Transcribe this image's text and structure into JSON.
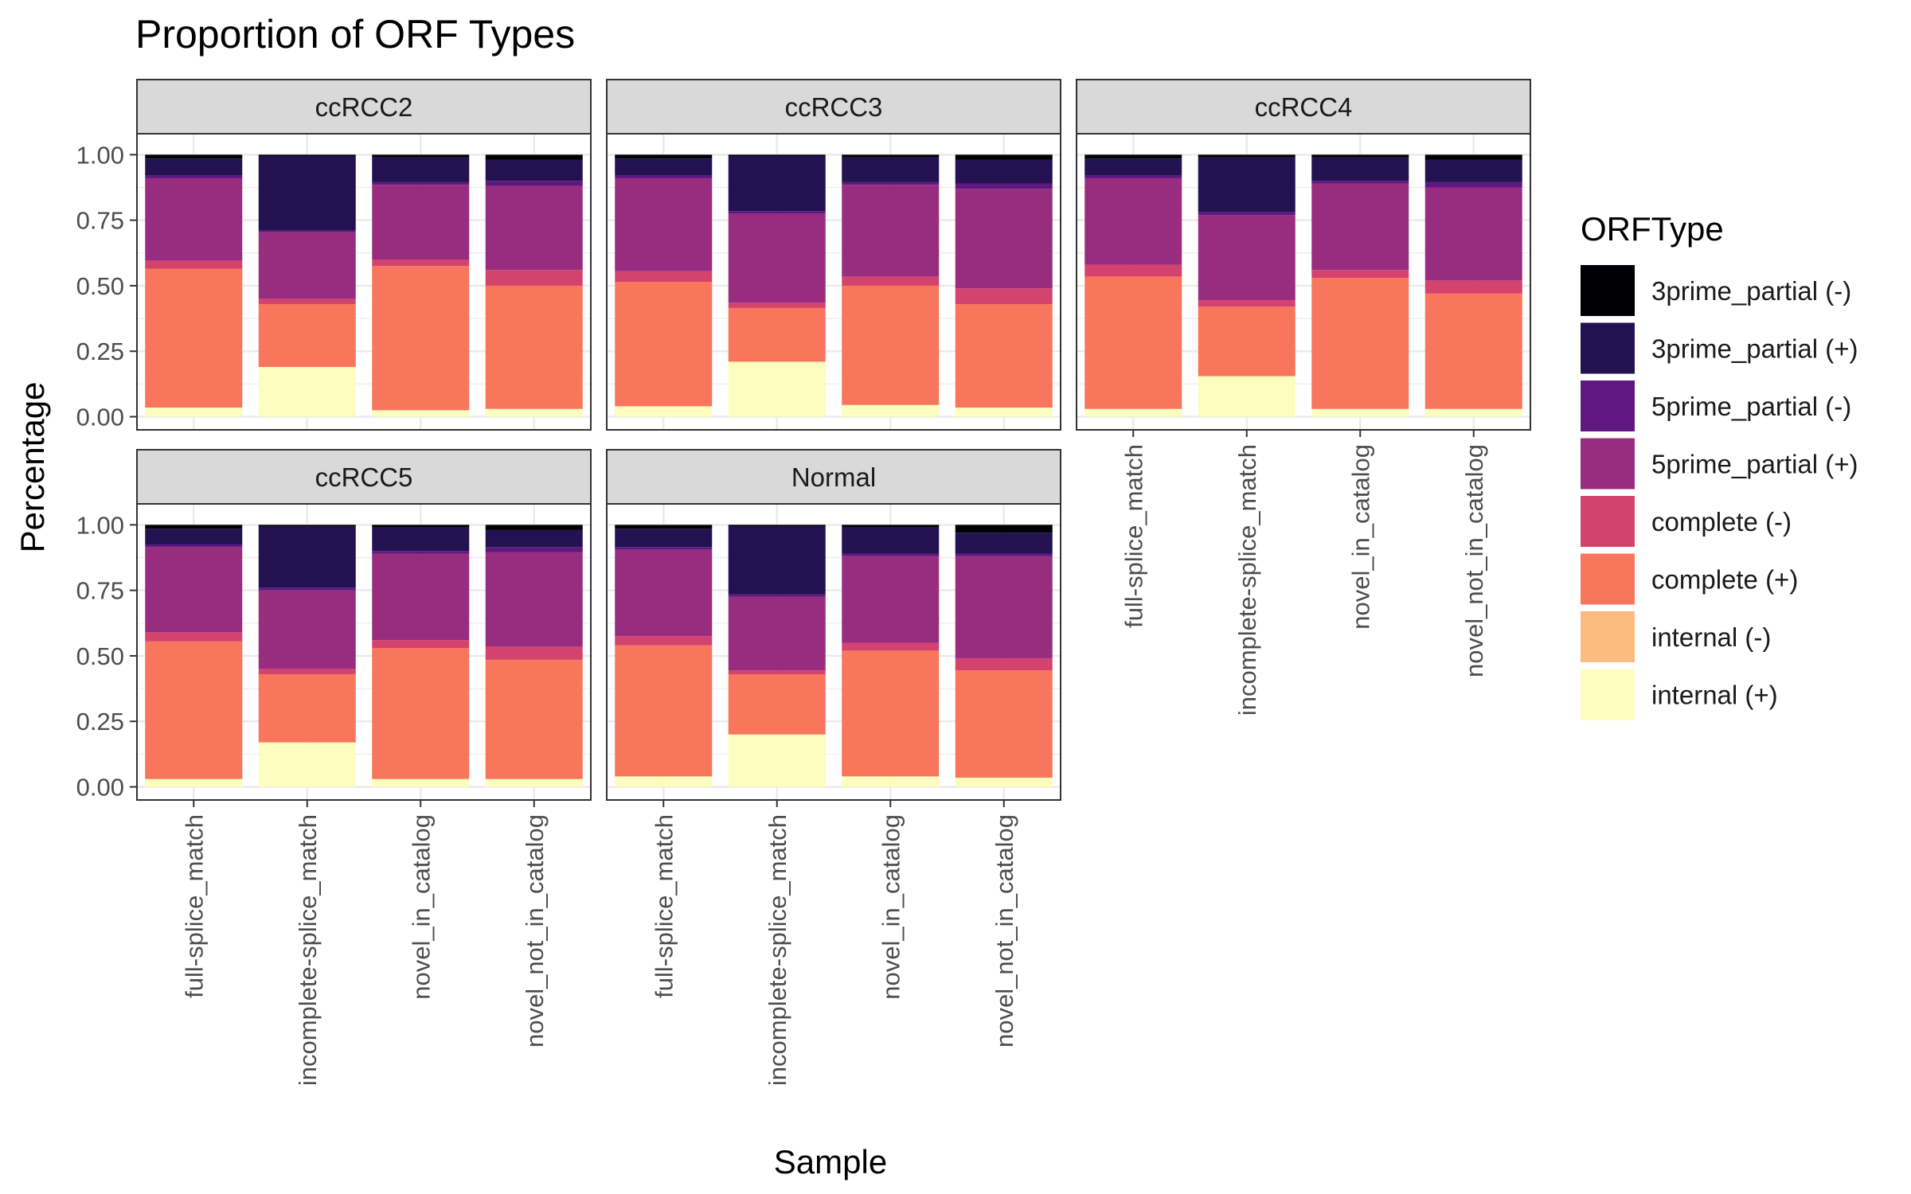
{
  "chart_data": {
    "type": "bar",
    "stacked": true,
    "title": "Proportion of ORF Types",
    "xlabel": "Sample",
    "ylabel": "Percentage",
    "ylim": [
      0,
      1.0
    ],
    "yticks": [
      "0.00",
      "0.25",
      "0.50",
      "0.75",
      "1.00"
    ],
    "categories": [
      "full-splice_match",
      "incomplete-splice_match",
      "novel_in_catalog",
      "novel_not_in_catalog"
    ],
    "legend": {
      "title": "ORFType",
      "placement": "right",
      "entries": [
        "3prime_partial (-)",
        "3prime_partial (+)",
        "5prime_partial (-)",
        "5prime_partial (+)",
        "complete (-)",
        "complete (+)",
        "internal (-)",
        "internal (+)"
      ]
    },
    "stack_order_bottom_to_top": [
      "internal (+)",
      "internal (-)",
      "complete (+)",
      "complete (-)",
      "5prime_partial (+)",
      "5prime_partial (-)",
      "3prime_partial (+)",
      "3prime_partial (-)"
    ],
    "colors": {
      "3prime_partial (-)": "#000004",
      "3prime_partial (+)": "#231151",
      "5prime_partial (-)": "#5f187f",
      "5prime_partial (+)": "#982d80",
      "complete (-)": "#d3436e",
      "complete (+)": "#f8765c",
      "internal (-)": "#febb81",
      "internal (+)": "#fcfdbf"
    },
    "panels": [
      {
        "name": "ccRCC2",
        "bars": [
          {
            "category": "full-splice_match",
            "values": {
              "internal (+)": 0.035,
              "internal (-)": 0.0,
              "complete (+)": 0.53,
              "complete (-)": 0.03,
              "5prime_partial (+)": 0.315,
              "5prime_partial (-)": 0.01,
              "3prime_partial (+)": 0.065,
              "3prime_partial (-)": 0.015
            }
          },
          {
            "category": "incomplete-splice_match",
            "values": {
              "internal (+)": 0.19,
              "internal (-)": 0.0,
              "complete (+)": 0.24,
              "complete (-)": 0.02,
              "5prime_partial (+)": 0.255,
              "5prime_partial (-)": 0.005,
              "3prime_partial (+)": 0.285,
              "3prime_partial (-)": 0.005
            }
          },
          {
            "category": "novel_in_catalog",
            "values": {
              "internal (+)": 0.025,
              "internal (-)": 0.0,
              "complete (+)": 0.55,
              "complete (-)": 0.025,
              "5prime_partial (+)": 0.285,
              "5prime_partial (-)": 0.01,
              "3prime_partial (+)": 0.095,
              "3prime_partial (-)": 0.01
            }
          },
          {
            "category": "novel_not_in_catalog",
            "values": {
              "internal (+)": 0.03,
              "internal (-)": 0.0,
              "complete (+)": 0.47,
              "complete (-)": 0.06,
              "5prime_partial (+)": 0.32,
              "5prime_partial (-)": 0.02,
              "3prime_partial (+)": 0.08,
              "3prime_partial (-)": 0.02
            }
          }
        ]
      },
      {
        "name": "ccRCC3",
        "bars": [
          {
            "category": "full-splice_match",
            "values": {
              "internal (+)": 0.04,
              "internal (-)": 0.0,
              "complete (+)": 0.475,
              "complete (-)": 0.04,
              "5prime_partial (+)": 0.355,
              "5prime_partial (-)": 0.01,
              "3prime_partial (+)": 0.065,
              "3prime_partial (-)": 0.015
            }
          },
          {
            "category": "incomplete-splice_match",
            "values": {
              "internal (+)": 0.21,
              "internal (-)": 0.0,
              "complete (+)": 0.205,
              "complete (-)": 0.02,
              "5prime_partial (+)": 0.34,
              "5prime_partial (-)": 0.01,
              "3prime_partial (+)": 0.21,
              "3prime_partial (-)": 0.005
            }
          },
          {
            "category": "novel_in_catalog",
            "values": {
              "internal (+)": 0.045,
              "internal (-)": 0.0,
              "complete (+)": 0.455,
              "complete (-)": 0.035,
              "5prime_partial (+)": 0.35,
              "5prime_partial (-)": 0.01,
              "3prime_partial (+)": 0.095,
              "3prime_partial (-)": 0.01
            }
          },
          {
            "category": "novel_not_in_catalog",
            "values": {
              "internal (+)": 0.035,
              "internal (-)": 0.0,
              "complete (+)": 0.395,
              "complete (-)": 0.06,
              "5prime_partial (+)": 0.38,
              "5prime_partial (-)": 0.02,
              "3prime_partial (+)": 0.09,
              "3prime_partial (-)": 0.02
            }
          }
        ]
      },
      {
        "name": "ccRCC4",
        "bars": [
          {
            "category": "full-splice_match",
            "values": {
              "internal (+)": 0.03,
              "internal (-)": 0.0,
              "complete (+)": 0.505,
              "complete (-)": 0.045,
              "5prime_partial (+)": 0.33,
              "5prime_partial (-)": 0.01,
              "3prime_partial (+)": 0.065,
              "3prime_partial (-)": 0.015
            }
          },
          {
            "category": "incomplete-splice_match",
            "values": {
              "internal (+)": 0.155,
              "internal (-)": 0.0,
              "complete (+)": 0.265,
              "complete (-)": 0.025,
              "5prime_partial (+)": 0.325,
              "5prime_partial (-)": 0.01,
              "3prime_partial (+)": 0.21,
              "3prime_partial (-)": 0.01
            }
          },
          {
            "category": "novel_in_catalog",
            "values": {
              "internal (+)": 0.03,
              "internal (-)": 0.0,
              "complete (+)": 0.5,
              "complete (-)": 0.03,
              "5prime_partial (+)": 0.33,
              "5prime_partial (-)": 0.01,
              "3prime_partial (+)": 0.09,
              "3prime_partial (-)": 0.01
            }
          },
          {
            "category": "novel_not_in_catalog",
            "values": {
              "internal (+)": 0.03,
              "internal (-)": 0.0,
              "complete (+)": 0.44,
              "complete (-)": 0.05,
              "5prime_partial (+)": 0.355,
              "5prime_partial (-)": 0.02,
              "3prime_partial (+)": 0.085,
              "3prime_partial (-)": 0.02
            }
          }
        ]
      },
      {
        "name": "ccRCC5",
        "bars": [
          {
            "category": "full-splice_match",
            "values": {
              "internal (+)": 0.03,
              "internal (-)": 0.0,
              "complete (+)": 0.525,
              "complete (-)": 0.035,
              "5prime_partial (+)": 0.325,
              "5prime_partial (-)": 0.01,
              "3prime_partial (+)": 0.06,
              "3prime_partial (-)": 0.015
            }
          },
          {
            "category": "incomplete-splice_match",
            "values": {
              "internal (+)": 0.17,
              "internal (-)": 0.0,
              "complete (+)": 0.26,
              "complete (-)": 0.02,
              "5prime_partial (+)": 0.3,
              "5prime_partial (-)": 0.01,
              "3prime_partial (+)": 0.235,
              "3prime_partial (-)": 0.005
            }
          },
          {
            "category": "novel_in_catalog",
            "values": {
              "internal (+)": 0.03,
              "internal (-)": 0.0,
              "complete (+)": 0.5,
              "complete (-)": 0.03,
              "5prime_partial (+)": 0.33,
              "5prime_partial (-)": 0.01,
              "3prime_partial (+)": 0.09,
              "3prime_partial (-)": 0.01
            }
          },
          {
            "category": "novel_not_in_catalog",
            "values": {
              "internal (+)": 0.03,
              "internal (-)": 0.0,
              "complete (+)": 0.455,
              "complete (-)": 0.05,
              "5prime_partial (+)": 0.36,
              "5prime_partial (-)": 0.02,
              "3prime_partial (+)": 0.065,
              "3prime_partial (-)": 0.02
            }
          }
        ]
      },
      {
        "name": "Normal",
        "bars": [
          {
            "category": "full-splice_match",
            "values": {
              "internal (+)": 0.04,
              "internal (-)": 0.0,
              "complete (+)": 0.5,
              "complete (-)": 0.035,
              "5prime_partial (+)": 0.33,
              "5prime_partial (-)": 0.01,
              "3prime_partial (+)": 0.07,
              "3prime_partial (-)": 0.015
            }
          },
          {
            "category": "incomplete-splice_match",
            "values": {
              "internal (+)": 0.2,
              "internal (-)": 0.0,
              "complete (+)": 0.23,
              "complete (-)": 0.015,
              "5prime_partial (+)": 0.28,
              "5prime_partial (-)": 0.01,
              "3prime_partial (+)": 0.26,
              "3prime_partial (-)": 0.005
            }
          },
          {
            "category": "novel_in_catalog",
            "values": {
              "internal (+)": 0.04,
              "internal (-)": 0.0,
              "complete (+)": 0.48,
              "complete (-)": 0.03,
              "5prime_partial (+)": 0.33,
              "5prime_partial (-)": 0.01,
              "3prime_partial (+)": 0.1,
              "3prime_partial (-)": 0.01
            }
          },
          {
            "category": "novel_not_in_catalog",
            "values": {
              "internal (+)": 0.035,
              "internal (-)": 0.0,
              "complete (+)": 0.41,
              "complete (-)": 0.045,
              "5prime_partial (+)": 0.39,
              "5prime_partial (-)": 0.01,
              "3prime_partial (+)": 0.08,
              "3prime_partial (-)": 0.03
            }
          }
        ]
      }
    ]
  }
}
